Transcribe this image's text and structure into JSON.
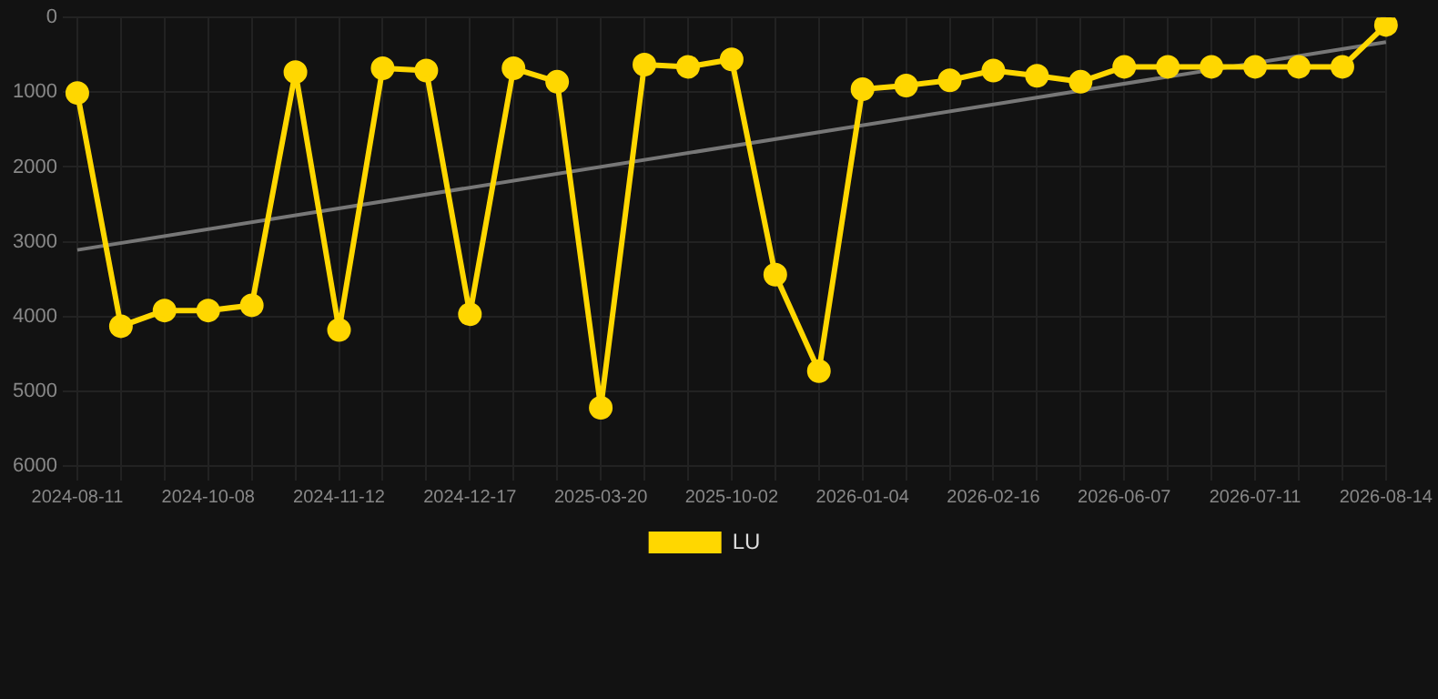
{
  "chart_data": {
    "type": "line",
    "categories": [
      "2024-08-11",
      null,
      null,
      "2024-10-08",
      null,
      null,
      "2024-11-12",
      null,
      null,
      "2024-12-17",
      null,
      null,
      "2025-03-20",
      null,
      null,
      "2025-10-02",
      null,
      null,
      "2026-01-04",
      null,
      null,
      "2026-02-16",
      null,
      null,
      "2026-06-07",
      null,
      null,
      "2026-07-11",
      null,
      null,
      "2026-08-14"
    ],
    "series": [
      {
        "name": "LU",
        "color": "#ffd700",
        "marker": "circle",
        "values": [
          1010,
          4130,
          3920,
          3920,
          3850,
          730,
          4180,
          680,
          710,
          3970,
          680,
          860,
          5220,
          630,
          660,
          560,
          3440,
          4730,
          960,
          910,
          840,
          710,
          780,
          860,
          660,
          660,
          660,
          660,
          660,
          660,
          100
        ]
      },
      {
        "type": "line",
        "color": "#777777",
        "marker": "none",
        "values": [
          3110,
          null,
          null,
          null,
          null,
          null,
          null,
          null,
          null,
          null,
          null,
          null,
          null,
          null,
          null,
          null,
          null,
          null,
          null,
          null,
          null,
          null,
          null,
          null,
          null,
          null,
          null,
          null,
          null,
          null,
          330
        ]
      }
    ],
    "ylim": [
      6000,
      0
    ],
    "yticks": [
      0,
      1000,
      2000,
      3000,
      4000,
      5000,
      6000
    ],
    "grid": true,
    "legend": "bottom"
  }
}
